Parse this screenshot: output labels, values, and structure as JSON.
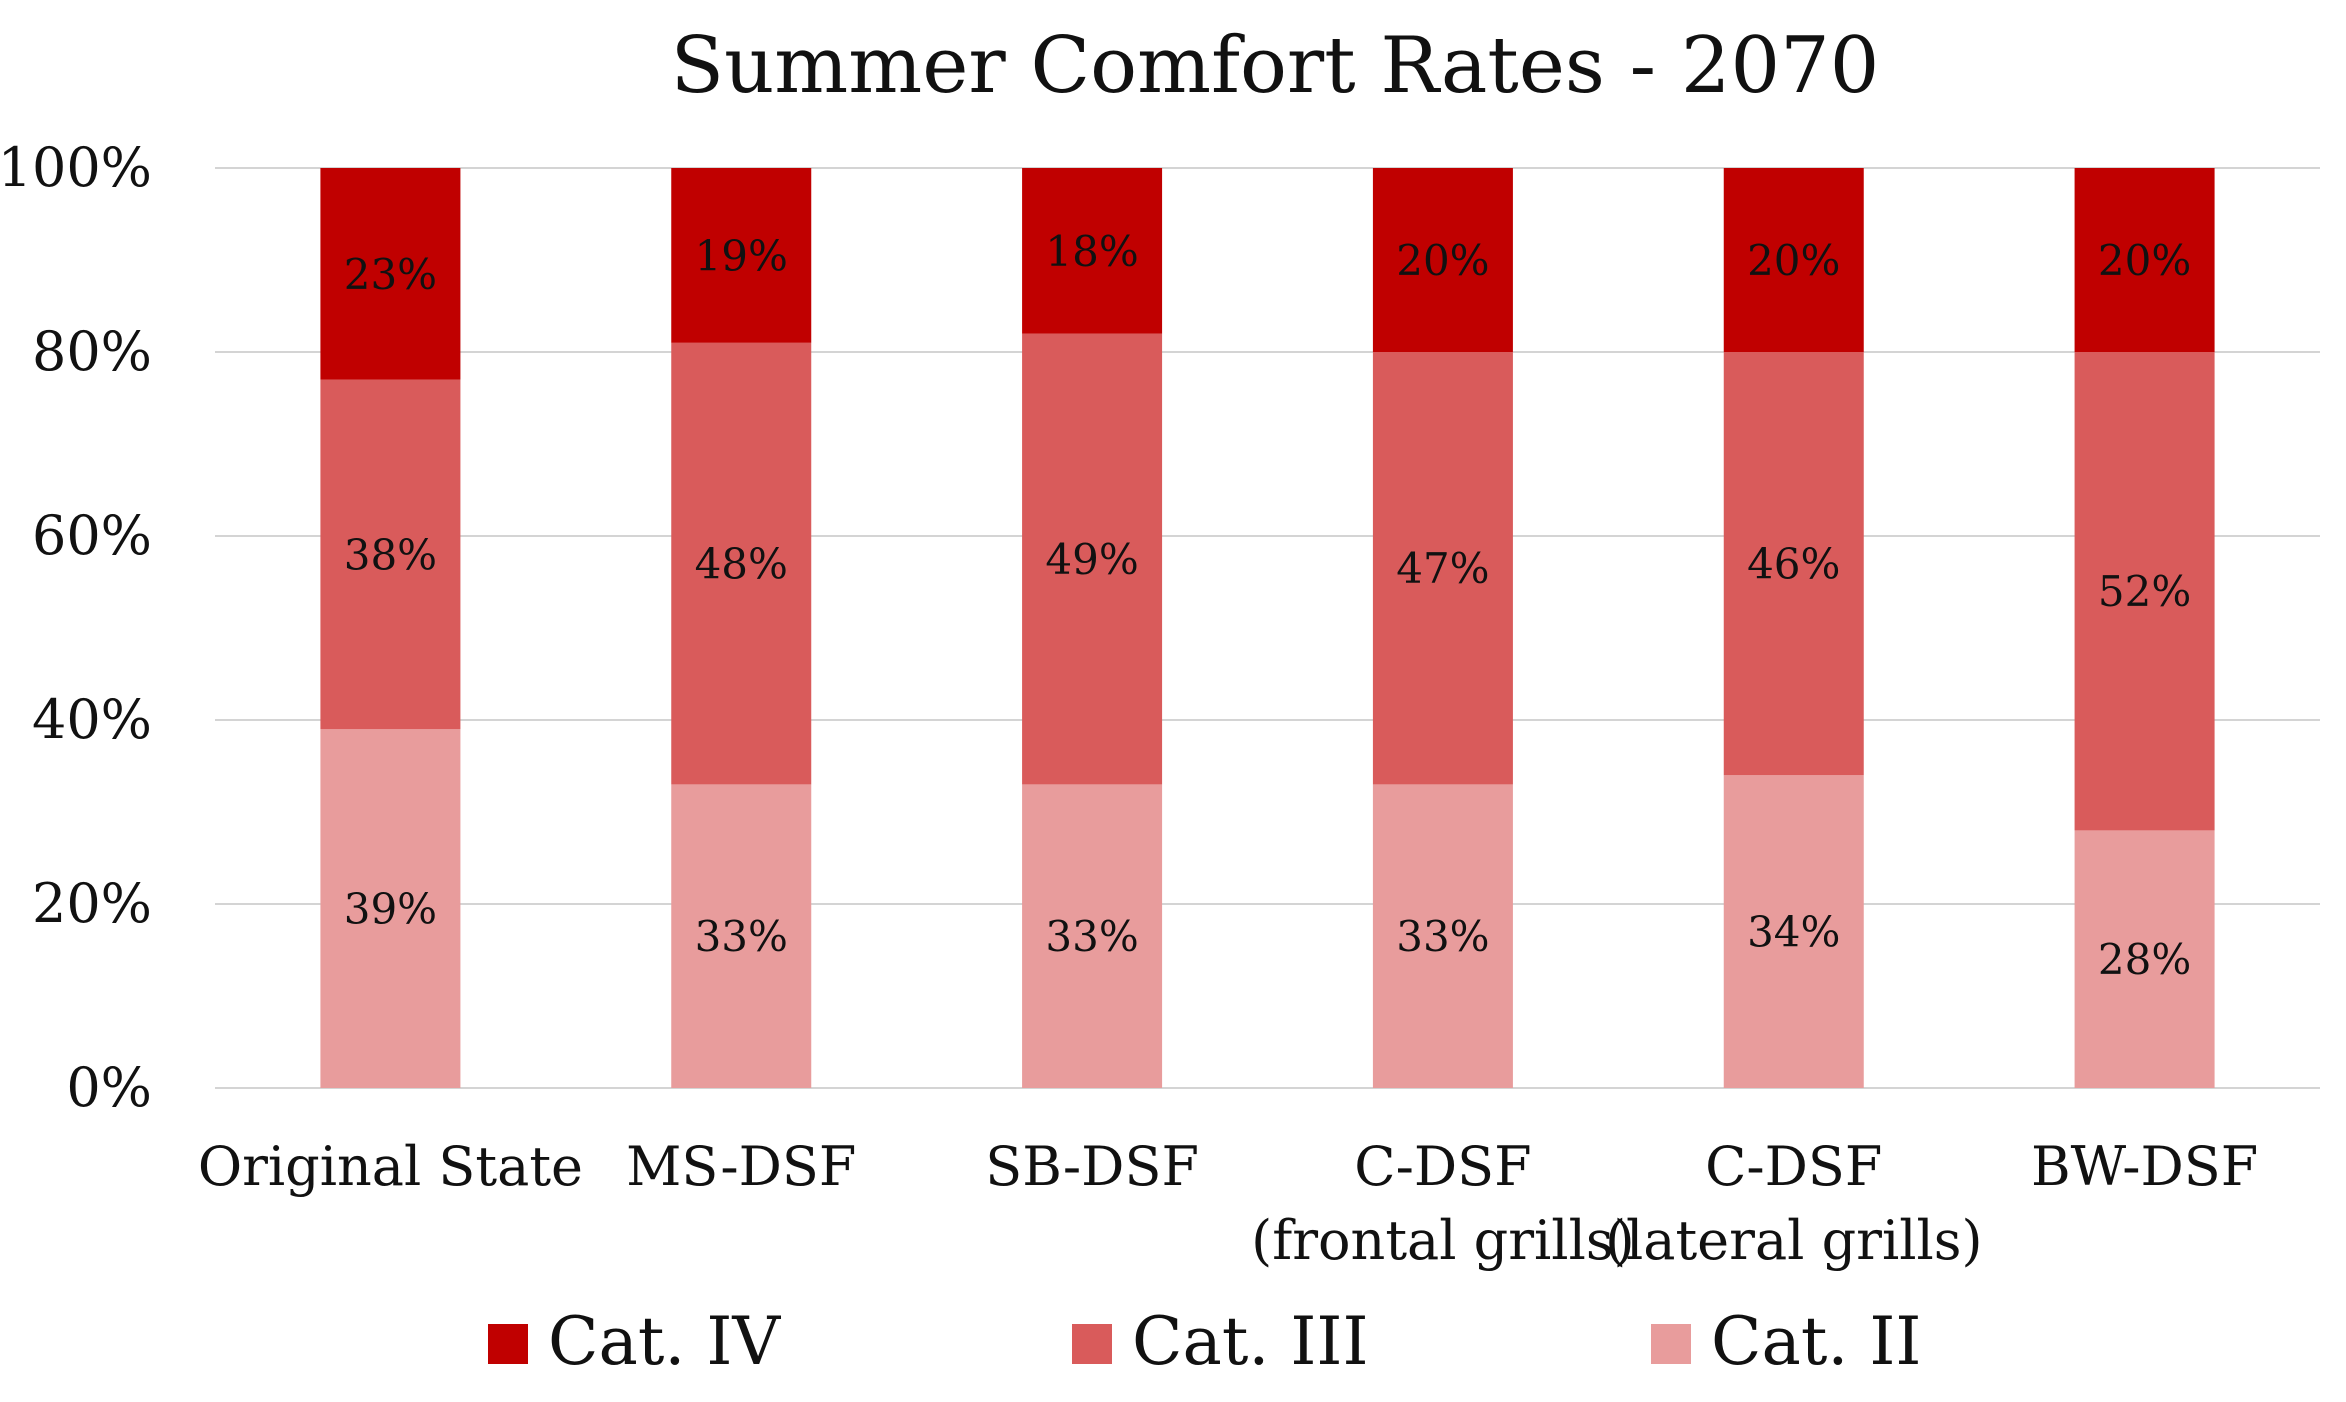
{
  "chart_data": {
    "type": "bar",
    "stacked": true,
    "title": "Summer Comfort Rates - 2070",
    "xlabel": "",
    "ylabel": "",
    "ylim": [
      0,
      100
    ],
    "yticks": [
      0,
      20,
      40,
      60,
      80,
      100
    ],
    "ytick_labels": [
      "0%",
      "20%",
      "40%",
      "60%",
      "80%",
      "100%"
    ],
    "grid": true,
    "legend_position": "bottom",
    "categories": [
      [
        "Original State"
      ],
      [
        "MS-DSF"
      ],
      [
        "SB-DSF"
      ],
      [
        "C-DSF",
        "(frontal grills)"
      ],
      [
        "C-DSF",
        "(lateral grills)"
      ],
      [
        "BW-DSF"
      ]
    ],
    "series": [
      {
        "name": "Cat. II",
        "color": "#e89c9c",
        "values": [
          39,
          33,
          33,
          33,
          34,
          28
        ],
        "labels": [
          "39%",
          "33%",
          "33%",
          "33%",
          "34%",
          "28%"
        ]
      },
      {
        "name": "Cat. III",
        "color": "#d95b5b",
        "values": [
          38,
          48,
          49,
          47,
          46,
          52
        ],
        "labels": [
          "38%",
          "48%",
          "49%",
          "47%",
          "46%",
          "52%"
        ]
      },
      {
        "name": "Cat. IV",
        "color": "#c00000",
        "values": [
          23,
          19,
          18,
          20,
          20,
          20
        ],
        "labels": [
          "23%",
          "19%",
          "18%",
          "20%",
          "20%",
          "20%"
        ]
      }
    ],
    "legend_order": [
      "Cat. IV",
      "Cat. III",
      "Cat. II"
    ]
  }
}
